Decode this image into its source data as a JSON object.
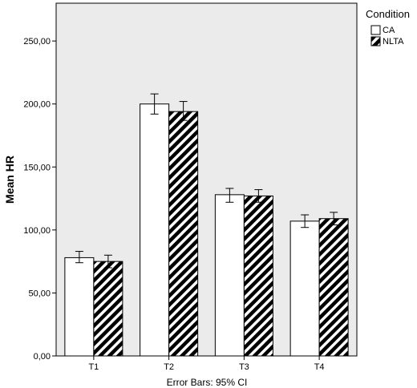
{
  "chart_data": {
    "type": "bar",
    "categories": [
      "T1",
      "T2",
      "T3",
      "T4"
    ],
    "series": [
      {
        "name": "CA",
        "values": [
          78,
          200,
          128,
          107
        ],
        "ci_low": [
          74,
          192,
          122,
          102
        ],
        "ci_high": [
          83,
          208,
          133,
          112
        ]
      },
      {
        "name": "NLTA",
        "values": [
          75,
          194,
          127,
          109
        ],
        "ci_low": [
          70,
          187,
          122,
          104
        ],
        "ci_high": [
          80,
          202,
          132,
          114
        ]
      }
    ],
    "ylabel": "Mean HR",
    "yticks": [
      "0,00",
      "50,00",
      "100,00",
      "150,00",
      "200,00",
      "250,00"
    ],
    "ytick_values": [
      0,
      50,
      100,
      150,
      200,
      250
    ],
    "ylim": [
      0,
      280
    ],
    "note": "Error Bars: 95% CI",
    "legend": {
      "title": "Condition",
      "entries": [
        "CA",
        "NLTA"
      ],
      "position": "top-right"
    },
    "grid": false,
    "colors": {
      "plot_background": "#ebebeb",
      "bar_fill_ca": "#ffffff",
      "bar_fill_nlta": "#000000",
      "bar_stroke": "#000000"
    }
  }
}
